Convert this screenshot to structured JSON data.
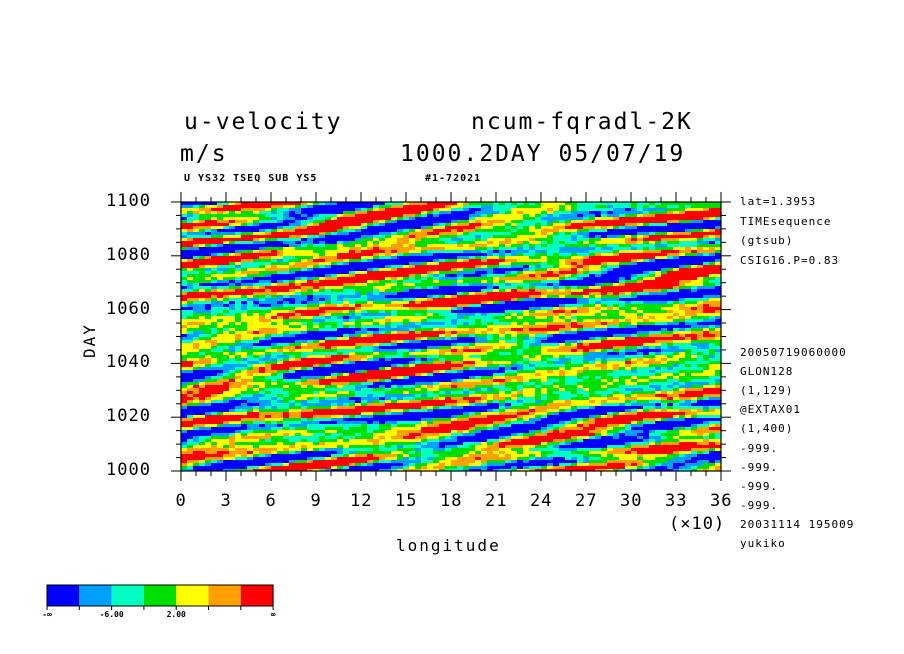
{
  "header": {
    "title_left": "u-velocity",
    "title_right": "ncum-fqradl-2K",
    "units": "m/s",
    "time_info": "1000.2DAY 05/07/19",
    "sub_left": "U YS32 TSEQ SUB YS5",
    "sub_right": "#1-72021"
  },
  "side_info": {
    "lines_top": [
      "lat=1.3953",
      "TIMEsequence",
      "(gtsub)",
      "CSIG16.P=0.83"
    ],
    "lines_bottom": [
      "20050719060000",
      "GLON128",
      "(1,129)",
      "@EXTAX01",
      "(1,400)",
      "-999.",
      "-999.",
      "-999.",
      "-999.",
      "20031114 195009",
      "yukiko"
    ]
  },
  "colorbar": {
    "colors": [
      "#0000ff",
      "#00a0ff",
      "#00ffc0",
      "#00e000",
      "#ffff00",
      "#ffa000",
      "#ff0000"
    ],
    "labels": [
      "-∞",
      "-6.00",
      "2.00",
      "∞"
    ]
  },
  "chart_data": {
    "type": "heatmap",
    "title": "u-velocity",
    "units": "m/s",
    "xlabel": "longitude",
    "ylabel": "DAY",
    "x_multiplier": "(×10)",
    "xlim": [
      0,
      36
    ],
    "ylim": [
      1000,
      1100
    ],
    "x_ticks": [
      "0",
      "3",
      "6",
      "9",
      "12",
      "15",
      "18",
      "21",
      "24",
      "27",
      "30",
      "33",
      "36"
    ],
    "y_ticks": [
      "1000",
      "1020",
      "1040",
      "1060",
      "1080",
      "1100"
    ],
    "grid": false
  }
}
